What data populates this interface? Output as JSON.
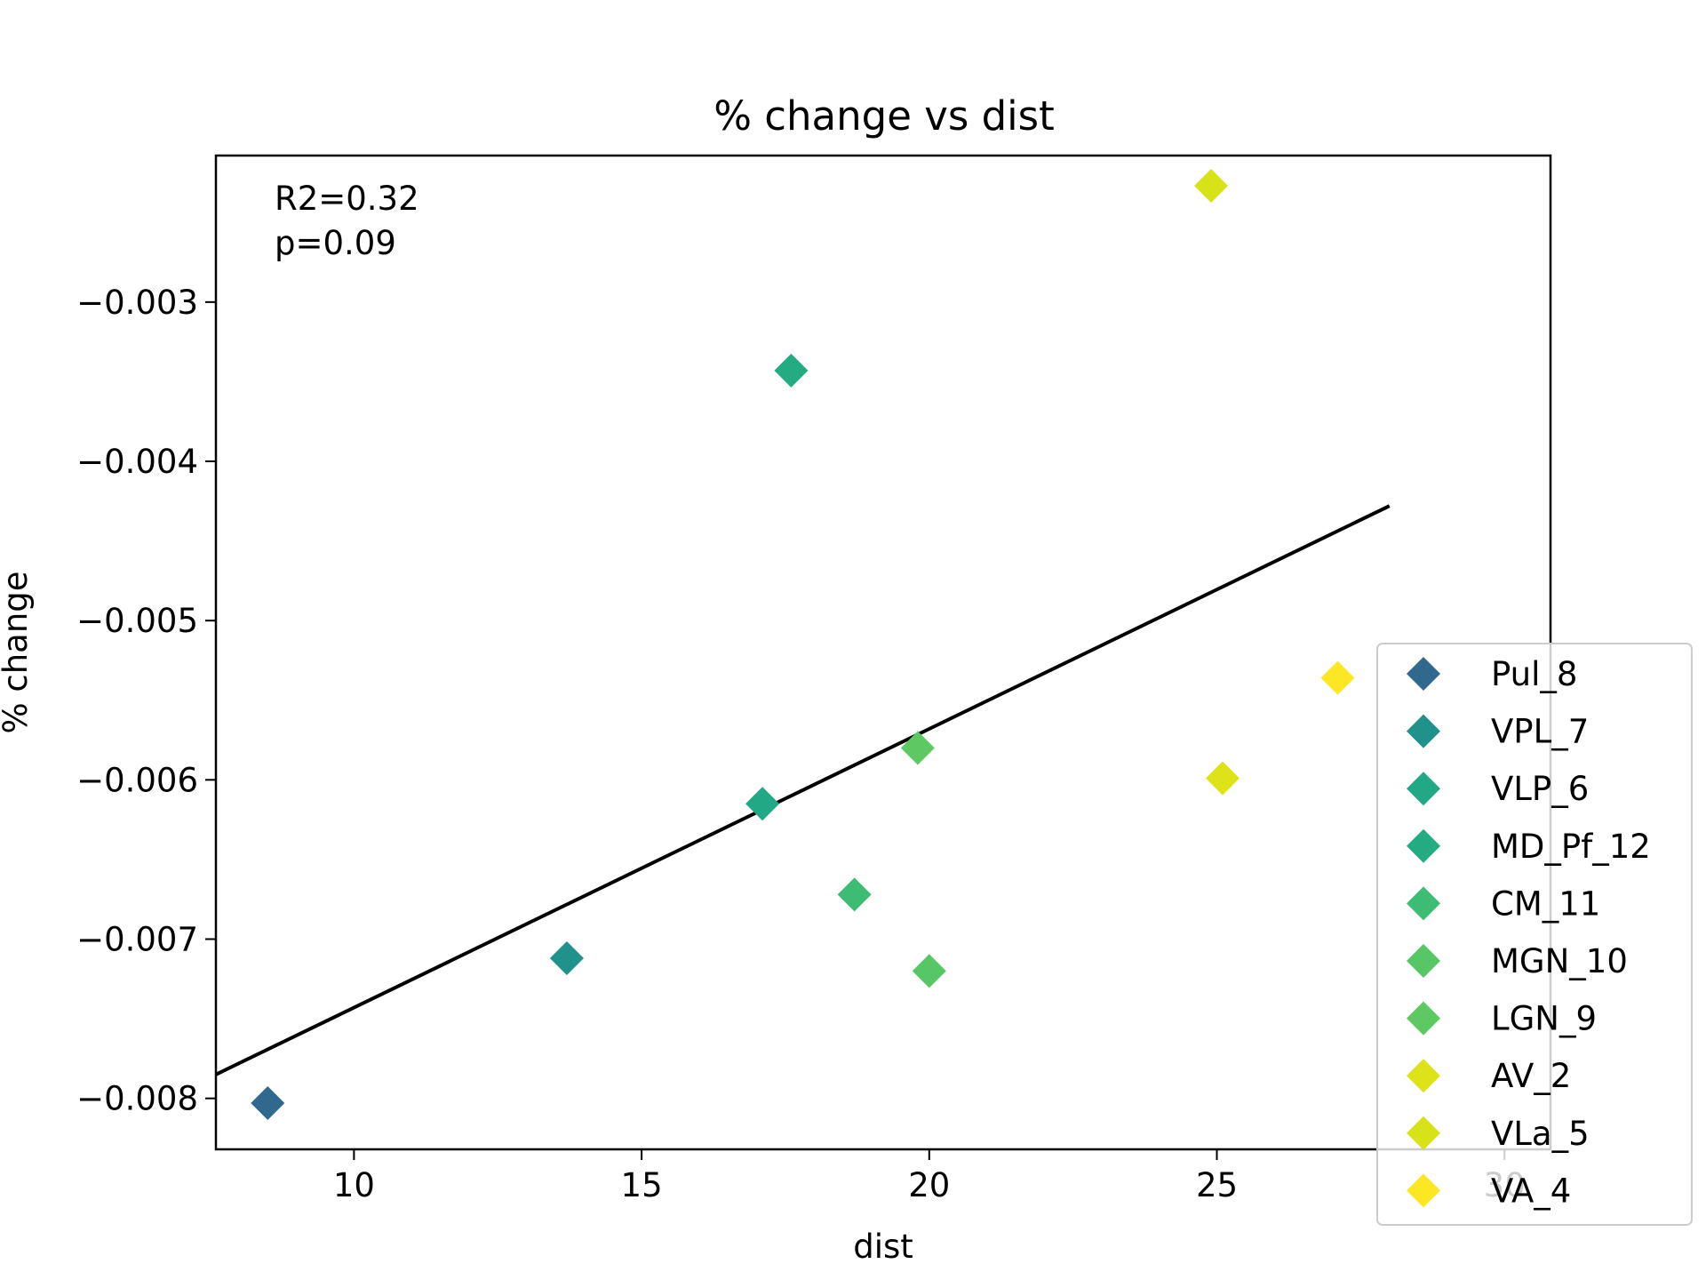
{
  "chart_data": {
    "type": "scatter",
    "title": "% change vs dist",
    "xlabel": "dist",
    "ylabel": "% change",
    "xlim": [
      7.6,
      30.8
    ],
    "ylim": [
      -0.00832,
      -0.00208
    ],
    "xticks": [
      10,
      15,
      20,
      25,
      30
    ],
    "xtick_labels": [
      "10",
      "15",
      "20",
      "25",
      "30"
    ],
    "yticks": [
      -0.008,
      -0.007,
      -0.006,
      -0.005,
      -0.004,
      -0.003
    ],
    "ytick_labels": [
      "−0.008",
      "−0.007",
      "−0.006",
      "−0.005",
      "−0.004",
      "−0.003"
    ],
    "grid": false,
    "legend_position": "right",
    "annotation": [
      "R2=0.32",
      "p=0.09"
    ],
    "regression_line": {
      "x": [
        7.6,
        28.0
      ],
      "y": [
        -0.00785,
        -0.00428
      ],
      "color": "#000000"
    },
    "series": [
      {
        "name": "Pul_8",
        "color": "#31688e",
        "points": [
          [
            8.5,
            -0.00803
          ]
        ]
      },
      {
        "name": "VPL_7",
        "color": "#21918c",
        "points": [
          [
            13.7,
            -0.00712
          ]
        ]
      },
      {
        "name": "VLP_6",
        "color": "#22a884",
        "points": [
          [
            17.1,
            -0.00615
          ]
        ]
      },
      {
        "name": "MD_Pf_12",
        "color": "#25ab82",
        "points": [
          [
            17.6,
            -0.00343
          ]
        ]
      },
      {
        "name": "CM_11",
        "color": "#3dbc74",
        "points": [
          [
            18.7,
            -0.00672
          ]
        ]
      },
      {
        "name": "MGN_10",
        "color": "#56c667",
        "points": [
          [
            20.0,
            -0.0072
          ]
        ]
      },
      {
        "name": "LGN_9",
        "color": "#5ec962",
        "points": [
          [
            19.8,
            -0.0058
          ]
        ]
      },
      {
        "name": "AV_2",
        "color": "#dde318",
        "points": [
          [
            25.1,
            -0.00599
          ]
        ]
      },
      {
        "name": "VLa_5",
        "color": "#d8e219",
        "points": [
          [
            24.9,
            -0.00227
          ]
        ]
      },
      {
        "name": "VA_4",
        "color": "#fde725",
        "points": [
          [
            27.1,
            -0.00536
          ]
        ]
      }
    ]
  }
}
